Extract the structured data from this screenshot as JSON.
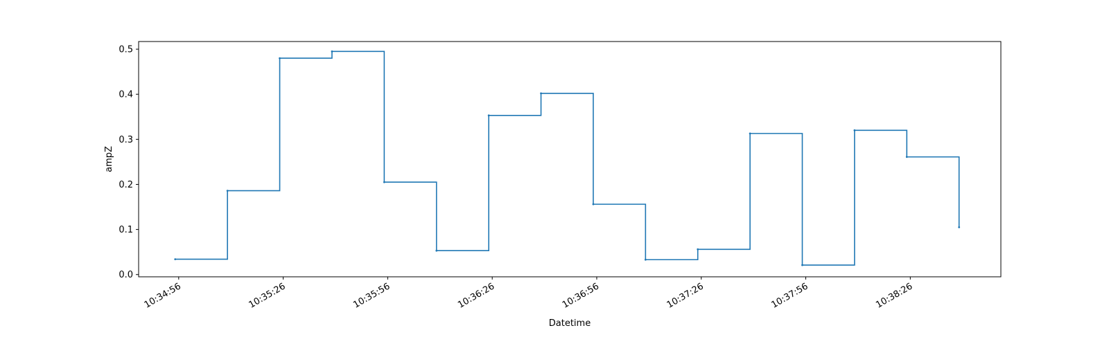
{
  "chart_data": {
    "type": "line",
    "step": "post",
    "xlabel": "Datetime",
    "ylabel": "ampZ",
    "xtick_labels": [
      "10:34:56",
      "10:35:26",
      "10:35:56",
      "10:36:26",
      "10:36:56",
      "10:37:26",
      "10:37:56",
      "10:38:26"
    ],
    "ylim": [
      -0.005,
      0.517
    ],
    "yticks": [
      0.0,
      0.1,
      0.2,
      0.3,
      0.4,
      0.5
    ],
    "ytick_labels": [
      "0.0",
      "0.1",
      "0.2",
      "0.3",
      "0.4",
      "0.5"
    ],
    "xlim": [
      "10:34:44.5",
      "10:38:52"
    ],
    "grid": false,
    "colors": {
      "line": "#1f77b4",
      "axes": "#000000",
      "background": "#ffffff"
    },
    "series": [
      {
        "x": [
          "10:34:55",
          "10:35:10",
          "10:35:25",
          "10:35:40",
          "10:35:55",
          "10:36:10",
          "10:36:25",
          "10:36:40",
          "10:36:55",
          "10:37:10",
          "10:37:25",
          "10:37:40",
          "10:37:55",
          "10:38:10",
          "10:38:25"
        ],
        "values": [
          0.034,
          0.186,
          0.48,
          0.495,
          0.205,
          0.053,
          0.353,
          0.402,
          0.156,
          0.033,
          0.056,
          0.313,
          0.021,
          0.32,
          0.261
        ],
        "end_x": "10:38:40",
        "end_value": 0.105
      }
    ]
  }
}
